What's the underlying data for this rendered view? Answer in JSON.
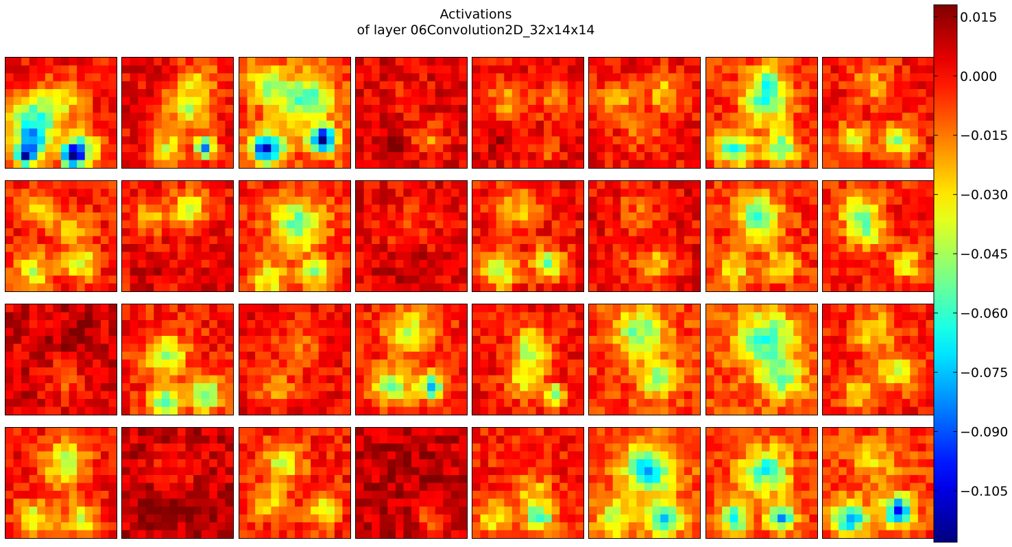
{
  "chart_data": {
    "type": "heatmap",
    "title_lines": [
      "Activations",
      "of layer 06Convolution2D_32x14x14"
    ],
    "layout": {
      "rows": 4,
      "cols": 8,
      "cells_per_side": 14
    },
    "colormap": "jet",
    "vmin": -0.118,
    "vmax": 0.018,
    "colorbar": {
      "ticks": [
        0.015,
        0.0,
        -0.015,
        -0.03,
        -0.045,
        -0.06,
        -0.075,
        -0.09,
        -0.105
      ],
      "tick_labels": [
        "0.015",
        "0.000",
        "−0.015",
        "−0.030",
        "−0.045",
        "−0.060",
        "−0.075",
        "−0.090",
        "−0.105"
      ],
      "placement": "right"
    },
    "maps": [
      {
        "index": 0,
        "base": 0.0,
        "blobs": [
          [
            7,
            3,
            -0.05,
            2.2
          ],
          [
            10,
            3,
            -0.055,
            1.6
          ],
          [
            12,
            2,
            -0.09,
            0.9
          ],
          [
            12,
            8,
            -0.1,
            0.9
          ],
          [
            11,
            9,
            -0.06,
            1.5
          ],
          [
            5,
            7,
            -0.025,
            2.0
          ]
        ]
      },
      {
        "index": 1,
        "base": 0.002,
        "blobs": [
          [
            6,
            8,
            -0.04,
            2.0
          ],
          [
            11,
            5,
            -0.035,
            1.5
          ],
          [
            11,
            10,
            -0.08,
            0.9
          ],
          [
            2,
            9,
            -0.02,
            2.0
          ]
        ]
      },
      {
        "index": 2,
        "base": -0.008,
        "blobs": [
          [
            5,
            8,
            -0.05,
            2.2
          ],
          [
            11,
            3,
            -0.095,
            1.4
          ],
          [
            10,
            10,
            -0.11,
            1.1
          ],
          [
            3,
            3,
            -0.04,
            1.6
          ]
        ]
      },
      {
        "index": 3,
        "base": 0.004,
        "blobs": [
          [
            10,
            9,
            -0.025,
            1.3
          ],
          [
            11,
            4,
            0.015,
            1.0
          ],
          [
            4,
            6,
            -0.005,
            2.0
          ]
        ]
      },
      {
        "index": 4,
        "base": 0.002,
        "blobs": [
          [
            5,
            4,
            -0.025,
            1.6
          ],
          [
            5,
            10,
            -0.02,
            1.5
          ],
          [
            10,
            3,
            0.012,
            1.0
          ],
          [
            11,
            9,
            -0.015,
            1.0
          ]
        ]
      },
      {
        "index": 5,
        "base": 0.0,
        "blobs": [
          [
            4,
            9,
            -0.03,
            1.5
          ],
          [
            5,
            3,
            -0.025,
            1.5
          ],
          [
            9,
            6,
            -0.015,
            1.5
          ]
        ]
      },
      {
        "index": 6,
        "base": -0.004,
        "blobs": [
          [
            5,
            7,
            -0.05,
            2.0
          ],
          [
            11,
            3,
            -0.055,
            1.5
          ],
          [
            11,
            9,
            -0.05,
            1.5
          ],
          [
            2,
            7,
            -0.03,
            1.5
          ]
        ]
      },
      {
        "index": 7,
        "base": 0.0,
        "blobs": [
          [
            10,
            9,
            -0.045,
            1.5
          ],
          [
            10,
            3,
            -0.035,
            1.5
          ],
          [
            3,
            6,
            -0.02,
            2.0
          ]
        ]
      },
      {
        "index": 8,
        "base": -0.002,
        "blobs": [
          [
            3,
            4,
            -0.03,
            1.5
          ],
          [
            11,
            3,
            -0.035,
            1.6
          ],
          [
            10,
            9,
            -0.04,
            1.3
          ],
          [
            6,
            8,
            -0.02,
            1.8
          ]
        ]
      },
      {
        "index": 9,
        "base": 0.001,
        "blobs": [
          [
            3,
            8,
            -0.04,
            1.6
          ],
          [
            4,
            3,
            -0.03,
            1.4
          ],
          [
            11,
            3,
            0.01,
            1.2
          ],
          [
            12,
            10,
            0.01,
            1.0
          ]
        ]
      },
      {
        "index": 10,
        "base": -0.004,
        "blobs": [
          [
            5,
            7,
            -0.05,
            2.2
          ],
          [
            12,
            3,
            -0.035,
            1.5
          ],
          [
            11,
            9,
            -0.04,
            1.2
          ]
        ]
      },
      {
        "index": 11,
        "base": 0.004,
        "blobs": [
          [
            5,
            6,
            -0.01,
            2.5
          ],
          [
            10,
            7,
            0.01,
            1.5
          ]
        ]
      },
      {
        "index": 12,
        "base": 0.0,
        "blobs": [
          [
            11,
            3,
            -0.045,
            1.5
          ],
          [
            10,
            9,
            -0.05,
            1.3
          ],
          [
            3,
            5,
            -0.025,
            2.0
          ]
        ]
      },
      {
        "index": 13,
        "base": 0.002,
        "blobs": [
          [
            10,
            8,
            -0.03,
            1.5
          ],
          [
            3,
            6,
            -0.015,
            2.0
          ],
          [
            10,
            3,
            -0.01,
            1.5
          ]
        ]
      },
      {
        "index": 14,
        "base": -0.004,
        "blobs": [
          [
            4,
            6,
            -0.05,
            2.0
          ],
          [
            11,
            3,
            -0.03,
            1.5
          ],
          [
            10,
            9,
            -0.025,
            1.5
          ]
        ]
      },
      {
        "index": 15,
        "base": -0.002,
        "blobs": [
          [
            3,
            4,
            -0.035,
            1.8
          ],
          [
            6,
            5,
            -0.04,
            1.5
          ],
          [
            10,
            10,
            -0.03,
            1.4
          ]
        ]
      },
      {
        "index": 16,
        "base": 0.006,
        "blobs": [
          [
            9,
            7,
            -0.015,
            1.8
          ],
          [
            4,
            8,
            0.008,
            2.0
          ]
        ]
      },
      {
        "index": 17,
        "base": -0.002,
        "blobs": [
          [
            6,
            5,
            -0.045,
            1.8
          ],
          [
            11,
            10,
            -0.055,
            1.4
          ],
          [
            12,
            5,
            -0.06,
            1.3
          ]
        ]
      },
      {
        "index": 18,
        "base": 0.001,
        "blobs": [
          [
            10,
            4,
            -0.025,
            1.5
          ],
          [
            5,
            7,
            -0.015,
            2.0
          ]
        ]
      },
      {
        "index": 19,
        "base": -0.002,
        "blobs": [
          [
            3,
            6,
            -0.04,
            2.0
          ],
          [
            10,
            4,
            -0.045,
            1.6
          ],
          [
            10,
            9,
            -0.065,
            1.2
          ]
        ]
      },
      {
        "index": 20,
        "base": 0.0,
        "blobs": [
          [
            5,
            7,
            -0.04,
            1.8
          ],
          [
            9,
            6,
            -0.035,
            1.6
          ],
          [
            11,
            10,
            -0.05,
            1.0
          ]
        ]
      },
      {
        "index": 21,
        "base": -0.006,
        "blobs": [
          [
            3,
            6,
            -0.045,
            2.2
          ],
          [
            9,
            8,
            -0.04,
            1.6
          ]
        ]
      },
      {
        "index": 22,
        "base": -0.008,
        "blobs": [
          [
            4,
            7,
            -0.05,
            2.5
          ],
          [
            9,
            9,
            -0.04,
            1.8
          ]
        ]
      },
      {
        "index": 23,
        "base": -0.002,
        "blobs": [
          [
            3,
            6,
            -0.03,
            1.8
          ],
          [
            8,
            9,
            -0.035,
            1.6
          ],
          [
            11,
            4,
            -0.03,
            1.5
          ]
        ]
      },
      {
        "index": 24,
        "base": 0.0,
        "blobs": [
          [
            4,
            7,
            -0.04,
            2.0
          ],
          [
            11,
            3,
            -0.04,
            1.6
          ],
          [
            11,
            9,
            -0.035,
            1.6
          ]
        ]
      },
      {
        "index": 25,
        "base": 0.008,
        "blobs": [
          [
            10,
            3,
            0.012,
            1.5
          ],
          [
            10,
            8,
            0.01,
            1.5
          ],
          [
            5,
            6,
            -0.01,
            2.0
          ]
        ]
      },
      {
        "index": 26,
        "base": -0.002,
        "blobs": [
          [
            4,
            5,
            -0.035,
            1.8
          ],
          [
            10,
            10,
            -0.035,
            1.4
          ],
          [
            9,
            3,
            -0.025,
            1.5
          ]
        ]
      },
      {
        "index": 27,
        "base": 0.008,
        "blobs": [
          [
            4,
            6,
            0.005,
            2.5
          ],
          [
            11,
            9,
            -0.02,
            1.2
          ]
        ]
      },
      {
        "index": 28,
        "base": -0.002,
        "blobs": [
          [
            8,
            7,
            -0.025,
            1.8
          ],
          [
            11,
            8,
            -0.055,
            1.2
          ],
          [
            11,
            2,
            -0.03,
            1.4
          ]
        ]
      },
      {
        "index": 29,
        "base": -0.01,
        "blobs": [
          [
            5,
            7,
            -0.065,
            2.0
          ],
          [
            11,
            9,
            -0.065,
            1.4
          ],
          [
            11,
            3,
            -0.035,
            1.5
          ]
        ]
      },
      {
        "index": 30,
        "base": -0.006,
        "blobs": [
          [
            5,
            7,
            -0.055,
            2.0
          ],
          [
            11,
            9,
            -0.07,
            1.2
          ],
          [
            11,
            3,
            -0.06,
            1.3
          ]
        ]
      },
      {
        "index": 31,
        "base": -0.006,
        "blobs": [
          [
            11,
            3,
            -0.07,
            1.5
          ],
          [
            10,
            9,
            -0.085,
            1.3
          ],
          [
            4,
            6,
            -0.02,
            2.0
          ]
        ]
      }
    ]
  }
}
